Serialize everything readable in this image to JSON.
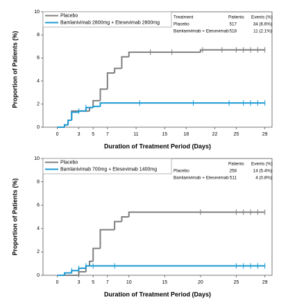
{
  "chart_data": [
    {
      "type": "step",
      "x_label": "Duration of Treatment Period (Days)",
      "y_label": "Proportion of Patients (%)",
      "xlim": [
        -2,
        30
      ],
      "xticks": [
        0,
        3,
        5,
        7,
        11,
        15,
        18,
        22,
        25,
        29
      ],
      "ylim": [
        0,
        10
      ],
      "yticks": [
        0,
        2,
        4,
        6,
        8,
        10
      ],
      "series": [
        {
          "name": "Placebo",
          "color": "#7f7f7f",
          "x": [
            0,
            1,
            1.5,
            2,
            4.5,
            5,
            6,
            7,
            8,
            9,
            10,
            20
          ],
          "values": [
            0,
            0.2,
            0.6,
            1.4,
            1.7,
            2.3,
            3.3,
            4.7,
            5.1,
            6.1,
            6.5,
            6.7
          ],
          "censored": [
            13,
            16,
            20.3,
            23,
            25,
            26,
            27,
            28,
            29
          ]
        },
        {
          "name": "Bamlanivimab 2800mg + Etesevimab 2800mg",
          "color": "#1b9ad2",
          "x": [
            0,
            1,
            1.5,
            2,
            3,
            4,
            5,
            6
          ],
          "values": [
            0,
            0.2,
            0.6,
            1.3,
            1.4,
            1.7,
            1.8,
            2.1
          ],
          "censored": [
            3,
            4,
            11.5,
            19,
            24,
            26,
            27,
            28,
            29
          ]
        }
      ],
      "table": {
        "columns": [
          "Treatment",
          "Patients",
          "Events (%)"
        ],
        "rows": [
          [
            "Placebo",
            "517",
            "34 (6.6%)"
          ],
          [
            "Bamlanivimab + Etesevimab",
            "518",
            "11 (2.1%)"
          ]
        ]
      }
    },
    {
      "type": "step",
      "x_label": "Duration of Treatment Period (Days)",
      "y_label": "Proportion of Patients (%)",
      "xlim": [
        -2,
        30
      ],
      "xticks": [
        0,
        3,
        5,
        7,
        10,
        15,
        20,
        25,
        29
      ],
      "ylim": [
        0,
        10
      ],
      "yticks": [
        0,
        2,
        4,
        6,
        8,
        10
      ],
      "series": [
        {
          "name": "Placebo",
          "color": "#7f7f7f",
          "x": [
            0,
            3,
            4,
            4.5,
            5,
            6,
            8,
            9,
            10
          ],
          "values": [
            0,
            0.3,
            0.8,
            1.2,
            2.3,
            3.9,
            4.6,
            5.0,
            5.4
          ],
          "censored": [
            20,
            25,
            26,
            27,
            28,
            29
          ]
        },
        {
          "name": "Bamlanivimab 700mg + Etesevimab 1400mg",
          "color": "#1b9ad2",
          "x": [
            0,
            1,
            2,
            3,
            4
          ],
          "values": [
            0,
            0.2,
            0.4,
            0.6,
            0.8
          ],
          "censored": [
            2,
            3,
            4,
            5,
            8,
            25,
            26,
            27,
            28,
            29
          ]
        }
      ],
      "table": {
        "columns": [
          "Patients",
          "Events (%)"
        ],
        "rows": [
          [
            "Placebo",
            "258",
            "14 (5.4%)"
          ],
          [
            "Bamlanivimab + Etesevimab",
            "511",
            "4 (0.8%)"
          ]
        ]
      }
    }
  ]
}
